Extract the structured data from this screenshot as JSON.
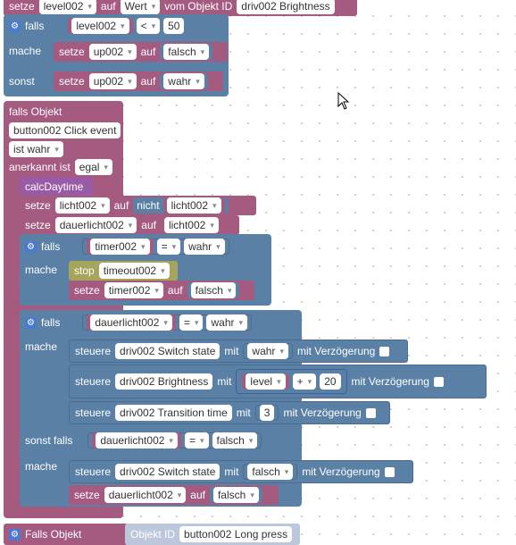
{
  "top": {
    "setze": "setze",
    "var": "level002",
    "auf": "auf",
    "wert": "Wert",
    "vom_objekt": "vom Objekt ID",
    "objekt": "driv002 Brightness"
  },
  "if1": {
    "falls": "falls",
    "var": "level002",
    "op": "<",
    "num": "50",
    "mache": "mache",
    "sonst": "sonst",
    "set1": {
      "setze": "setze",
      "var": "up002",
      "auf": "auf",
      "val": "falsch"
    },
    "set2": {
      "setze": "setze",
      "var": "up002",
      "auf": "auf",
      "val": "wahr"
    }
  },
  "trigger1": {
    "falls_objekt": "falls Objekt",
    "objekt": "button002 Click event",
    "ist": "ist wahr",
    "anerkannt": "anerkannt ist",
    "egal": "egal",
    "func": "calcDaytime",
    "set_licht": {
      "setze": "setze",
      "var": "licht002",
      "auf": "auf",
      "nicht": "nicht",
      "var2": "licht002"
    },
    "set_dauer": {
      "setze": "setze",
      "var": "dauerlicht002",
      "auf": "auf",
      "var2": "licht002"
    },
    "if_timer": {
      "falls": "falls",
      "var": "timer002",
      "op": "=",
      "val": "wahr",
      "mache": "mache",
      "stop": "stop",
      "timeout": "timeout002",
      "set": {
        "setze": "setze",
        "var": "timer002",
        "auf": "auf",
        "val": "falsch"
      }
    },
    "if_dauer": {
      "falls": "falls",
      "var": "dauerlicht002",
      "op": "=",
      "val": "wahr",
      "mache": "mache",
      "s1": {
        "steuere": "steuere",
        "obj": "driv002 Switch state",
        "mit": "mit",
        "val": "wahr",
        "verz": "mit Verzögerung"
      },
      "s2": {
        "steuere": "steuere",
        "obj": "driv002 Brightness",
        "mit": "mit",
        "var": "level",
        "op": "+",
        "num": "20",
        "verz": "mit Verzögerung"
      },
      "s3": {
        "steuere": "steuere",
        "obj": "driv002 Transition time",
        "mit": "mit",
        "num": "3",
        "verz": "mit Verzögerung"
      },
      "sonst_falls": "sonst falls",
      "var2": "dauerlicht002",
      "op2": "=",
      "val2": "falsch",
      "mache2": "mache",
      "s4": {
        "steuere": "steuere",
        "obj": "driv002 Switch state",
        "mit": "mit",
        "val": "falsch",
        "verz": "mit Verzögerung"
      },
      "set": {
        "setze": "setze",
        "var": "dauerlicht002",
        "auf": "auf",
        "val": "falsch"
      }
    }
  },
  "trigger2": {
    "falls_objekt": "Falls Objekt",
    "objekt_id": "Objekt ID",
    "objekt": "button002 Long press"
  }
}
